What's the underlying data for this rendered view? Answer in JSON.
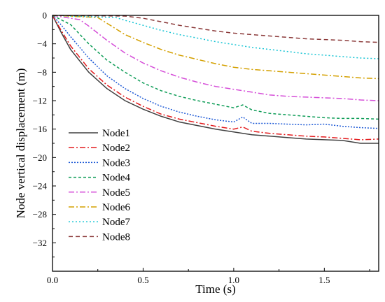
{
  "chart_data": {
    "type": "line",
    "title": "",
    "xlabel": "Time (s)",
    "ylabel": "Node vertical displacement (m)",
    "xlim": [
      0,
      1.8
    ],
    "ylim": [
      -36,
      0
    ],
    "xticks": [
      0.0,
      0.5,
      1.0,
      1.5
    ],
    "xtick_labels": [
      "0.0",
      "0.5",
      "1.0",
      "1.5"
    ],
    "yticks": [
      0,
      -4,
      -8,
      -12,
      -16,
      -20,
      -24,
      -28,
      -32
    ],
    "ytick_labels": [
      "0",
      "−4",
      "−8",
      "−12",
      "−16",
      "−20",
      "−24",
      "−28",
      "−32"
    ],
    "grid": false,
    "legend_position": "bottom-left",
    "series": [
      {
        "name": "Node1",
        "color": "#404040",
        "dash": "none",
        "x": [
          0,
          0.05,
          0.1,
          0.2,
          0.3,
          0.4,
          0.5,
          0.6,
          0.7,
          0.8,
          0.9,
          1.0,
          1.1,
          1.2,
          1.3,
          1.4,
          1.5,
          1.6,
          1.7,
          1.8
        ],
        "y": [
          0,
          -2.5,
          -4.8,
          -8.0,
          -10.3,
          -12.0,
          -13.2,
          -14.2,
          -15.0,
          -15.5,
          -16.0,
          -16.4,
          -16.8,
          -17.0,
          -17.2,
          -17.4,
          -17.5,
          -17.6,
          -18.0,
          -18.0
        ]
      },
      {
        "name": "Node2",
        "color": "#e31a1c",
        "dash": "8,3,2,3",
        "x": [
          0,
          0.05,
          0.1,
          0.2,
          0.3,
          0.4,
          0.5,
          0.6,
          0.7,
          0.8,
          0.9,
          1.0,
          1.05,
          1.1,
          1.2,
          1.3,
          1.4,
          1.5,
          1.6,
          1.7,
          1.8
        ],
        "y": [
          0,
          -2.2,
          -4.3,
          -7.5,
          -9.8,
          -11.5,
          -12.8,
          -13.9,
          -14.6,
          -15.1,
          -15.6,
          -16.0,
          -15.7,
          -16.3,
          -16.6,
          -16.8,
          -17.0,
          -17.1,
          -17.3,
          -17.5,
          -17.4
        ]
      },
      {
        "name": "Node3",
        "color": "#1f5bd6",
        "dash": "2,2",
        "x": [
          0,
          0.05,
          0.1,
          0.2,
          0.3,
          0.4,
          0.5,
          0.6,
          0.7,
          0.8,
          0.9,
          1.0,
          1.05,
          1.1,
          1.2,
          1.3,
          1.4,
          1.5,
          1.6,
          1.7,
          1.8
        ],
        "y": [
          0,
          -1.4,
          -3.0,
          -6.0,
          -8.5,
          -10.3,
          -11.7,
          -12.8,
          -13.6,
          -14.2,
          -14.7,
          -15.0,
          -14.3,
          -15.2,
          -15.2,
          -15.3,
          -15.4,
          -15.3,
          -15.6,
          -15.8,
          -15.9
        ]
      },
      {
        "name": "Node4",
        "color": "#0f9d58",
        "dash": "4,3",
        "x": [
          0,
          0.1,
          0.2,
          0.3,
          0.4,
          0.5,
          0.6,
          0.7,
          0.8,
          0.9,
          1.0,
          1.05,
          1.1,
          1.2,
          1.3,
          1.4,
          1.5,
          1.6,
          1.7,
          1.8
        ],
        "y": [
          0,
          -1.3,
          -4.0,
          -6.3,
          -8.0,
          -9.5,
          -10.6,
          -11.4,
          -12.0,
          -12.5,
          -13.0,
          -12.6,
          -13.3,
          -13.8,
          -14.0,
          -14.2,
          -14.4,
          -14.5,
          -14.5,
          -14.6
        ]
      },
      {
        "name": "Node5",
        "color": "#d54ed8",
        "dash": "8,3,2,3",
        "x": [
          0,
          0.15,
          0.2,
          0.3,
          0.4,
          0.5,
          0.6,
          0.7,
          0.8,
          0.9,
          1.0,
          1.1,
          1.2,
          1.3,
          1.4,
          1.5,
          1.6,
          1.7,
          1.8
        ],
        "y": [
          0,
          -0.6,
          -1.5,
          -3.5,
          -5.3,
          -6.7,
          -7.8,
          -8.7,
          -9.4,
          -10.0,
          -10.4,
          -10.8,
          -11.2,
          -11.4,
          -11.5,
          -11.6,
          -11.7,
          -11.9,
          -12.0
        ]
      },
      {
        "name": "Node6",
        "color": "#d4a000",
        "dash": "8,3,2,3",
        "x": [
          0,
          0.25,
          0.3,
          0.4,
          0.5,
          0.6,
          0.7,
          0.8,
          0.9,
          1.0,
          1.1,
          1.2,
          1.3,
          1.4,
          1.5,
          1.6,
          1.7,
          1.8
        ],
        "y": [
          0,
          -0.3,
          -1.1,
          -2.7,
          -3.8,
          -4.8,
          -5.6,
          -6.2,
          -6.8,
          -7.3,
          -7.6,
          -7.8,
          -8.0,
          -8.2,
          -8.4,
          -8.6,
          -8.8,
          -8.9
        ]
      },
      {
        "name": "Node7",
        "color": "#14c4d4",
        "dash": "2,3",
        "x": [
          0,
          0.35,
          0.4,
          0.5,
          0.6,
          0.7,
          0.8,
          0.9,
          1.0,
          1.1,
          1.2,
          1.3,
          1.4,
          1.5,
          1.6,
          1.7,
          1.8
        ],
        "y": [
          0,
          -0.3,
          -0.7,
          -1.4,
          -2.1,
          -2.7,
          -3.2,
          -3.7,
          -4.1,
          -4.5,
          -4.8,
          -5.1,
          -5.4,
          -5.6,
          -5.8,
          -6.0,
          -6.1
        ]
      },
      {
        "name": "Node8",
        "color": "#8b3a3a",
        "dash": "6,4",
        "x": [
          0,
          0.4,
          0.5,
          0.6,
          0.7,
          0.8,
          0.9,
          1.0,
          1.1,
          1.2,
          1.3,
          1.4,
          1.5,
          1.6,
          1.7,
          1.8
        ],
        "y": [
          0,
          -0.1,
          -0.4,
          -0.9,
          -1.4,
          -1.8,
          -2.2,
          -2.5,
          -2.7,
          -2.9,
          -3.1,
          -3.3,
          -3.4,
          -3.5,
          -3.7,
          -3.8
        ]
      }
    ]
  }
}
